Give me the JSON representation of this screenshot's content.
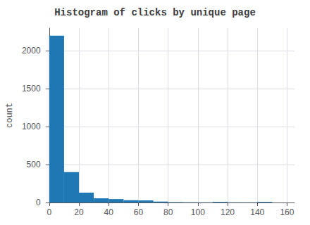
{
  "chart_data": {
    "type": "histogram",
    "title": "Histogram of clicks by unique page",
    "ylabel": "count",
    "bins": [
      0,
      10,
      20,
      30,
      40,
      50,
      60,
      70,
      80,
      90,
      100,
      110,
      120,
      130,
      140,
      150
    ],
    "values": [
      2200,
      400,
      130,
      55,
      45,
      30,
      28,
      12,
      5,
      3,
      2,
      8,
      2,
      2,
      8
    ],
    "color": "#1f77b4",
    "xlim": [
      -2,
      165
    ],
    "ylim": [
      0,
      2300
    ],
    "xticks": [
      0,
      20,
      40,
      60,
      80,
      100,
      120,
      140,
      160
    ],
    "yticks": [
      0,
      500,
      1000,
      1500,
      2000
    ],
    "grid": true
  }
}
